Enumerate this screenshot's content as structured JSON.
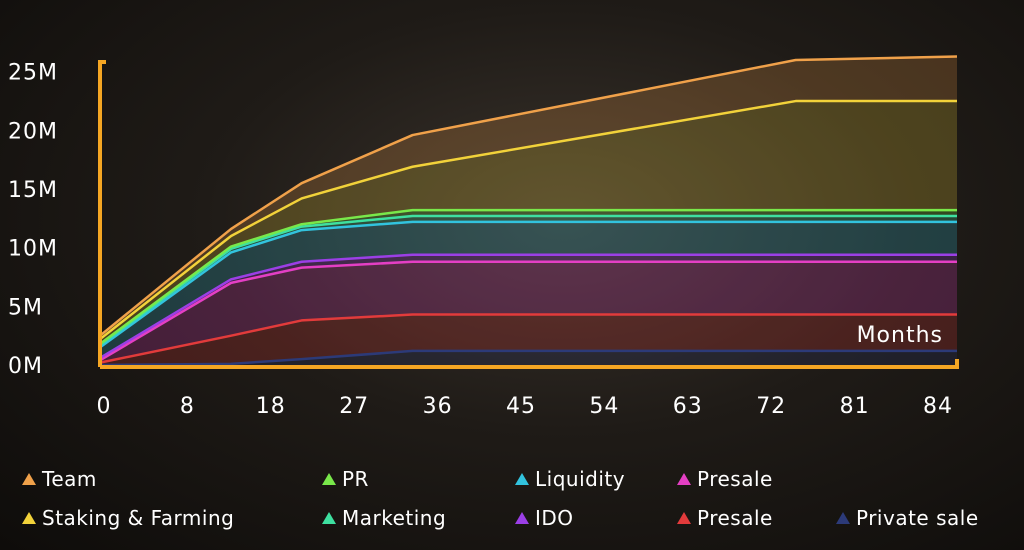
{
  "chart_data": {
    "type": "area",
    "stacked": true,
    "x": [
      0,
      13,
      20,
      31,
      69,
      85
    ],
    "x_ticks": [
      "0",
      "8",
      "18",
      "27",
      "36",
      "45",
      "54",
      "63",
      "72",
      "81",
      "84"
    ],
    "y_ticks": [
      "0M",
      "5M",
      "10M",
      "15M",
      "20M",
      "25M"
    ],
    "ylim": [
      0,
      26
    ],
    "xlabel": "Months",
    "ylabel": "",
    "grid": false,
    "legend_position": "bottom",
    "series": [
      {
        "name": "Private sale",
        "color": "#2c3a78",
        "values": [
          0,
          0.1,
          0.5,
          1.2,
          1.2,
          1.2
        ]
      },
      {
        "name": "Presale",
        "color": "#e23b3b",
        "values": [
          0.2,
          2.5,
          3.8,
          4.3,
          4.3,
          4.3
        ]
      },
      {
        "name": "Presale",
        "color": "#e43fc4",
        "values": [
          0.4,
          7.0,
          8.3,
          8.8,
          8.8,
          8.8
        ]
      },
      {
        "name": "IDO",
        "color": "#9b3fe6",
        "values": [
          0.6,
          7.3,
          8.8,
          9.4,
          9.4,
          9.4
        ]
      },
      {
        "name": "Liquidity",
        "color": "#32c3de",
        "values": [
          1.5,
          9.6,
          11.5,
          12.2,
          12.2,
          12.2
        ]
      },
      {
        "name": "Marketing",
        "color": "#3ee0a0",
        "values": [
          1.7,
          9.9,
          11.8,
          12.7,
          12.7,
          12.7
        ]
      },
      {
        "name": "PR",
        "color": "#79e84a",
        "values": [
          1.8,
          10.1,
          12.0,
          13.2,
          13.2,
          13.2
        ]
      },
      {
        "name": "Staking & Farming",
        "color": "#f2d23a",
        "values": [
          2.2,
          11.0,
          14.2,
          16.9,
          22.5,
          22.5
        ]
      },
      {
        "name": "Team",
        "color": "#f0a14a",
        "values": [
          2.5,
          11.6,
          15.5,
          19.6,
          26.0,
          26.3
        ]
      }
    ]
  },
  "legend": [
    {
      "label": "Team",
      "color": "#f0a14a"
    },
    {
      "label": "PR",
      "color": "#79e84a"
    },
    {
      "label": "Liquidity",
      "color": "#32c3de"
    },
    {
      "label": "Presale",
      "color": "#e43fc4"
    },
    {
      "label": "Staking & Farming",
      "color": "#f2d23a"
    },
    {
      "label": "Marketing",
      "color": "#3ee0a0"
    },
    {
      "label": "IDO",
      "color": "#9b3fe6"
    },
    {
      "label": "Presale",
      "color": "#e23b3b"
    },
    {
      "label": "Private sale",
      "color": "#2c3a78"
    }
  ],
  "axis_color": "#f5a623"
}
